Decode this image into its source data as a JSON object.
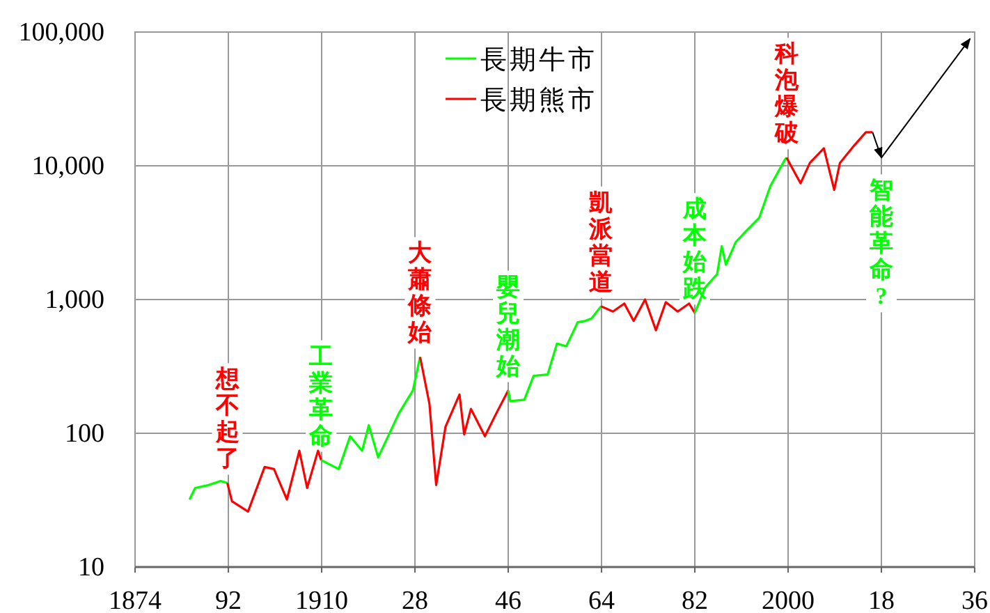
{
  "chart_data": {
    "type": "line",
    "log": true,
    "grid": true,
    "legend": "top",
    "xlim": [
      1874,
      2036
    ],
    "ylim": [
      10,
      100000
    ],
    "xticks": [
      1874,
      {
        "value": 1892,
        "label": "92"
      },
      1910,
      {
        "value": 1928,
        "label": "28"
      },
      {
        "value": 1946,
        "label": "46"
      },
      {
        "value": 1964,
        "label": "64"
      },
      {
        "value": 1982,
        "label": "82"
      },
      2000,
      {
        "value": 2018,
        "label": "18"
      },
      {
        "value": 2036,
        "label": "36"
      }
    ],
    "yticks": [
      10,
      100,
      {
        "value": 1000,
        "label": "1,000"
      },
      {
        "value": 10000,
        "label": "10,000"
      },
      {
        "value": 100000,
        "label": "100,000"
      }
    ],
    "series": [
      {
        "name": "長期牛市",
        "color": "#00ff00",
        "x": [
          1884.5,
          1885.6,
          1888.2,
          1890.5,
          1891.8
        ],
        "values": [
          32,
          39,
          41,
          44,
          42.5
        ]
      },
      {
        "name": "長期熊市",
        "color": "#ff0000",
        "x": [
          1891.8,
          1892.7,
          1895.8,
          1899,
          1900.8,
          1903.3,
          1905.7,
          1907.2,
          1909.3,
          1909.9
        ],
        "values": [
          42.5,
          31,
          26,
          56,
          54,
          32,
          74,
          39,
          74,
          63
        ]
      },
      {
        "color": "#00ff00",
        "x": [
          1909.9,
          1913.3,
          1915.5,
          1917.8,
          1919.1,
          1920.9,
          1923.2,
          1924.9,
          1927.6,
          1929
        ],
        "values": [
          63,
          54,
          95,
          74,
          115,
          66,
          102,
          141,
          209,
          372
        ]
      },
      {
        "color": "#ff0000",
        "x": [
          1929,
          1930.8,
          1932.1,
          1933.9,
          1936.6,
          1937.5,
          1938.8,
          1941.5,
          1943.7,
          1946
        ],
        "values": [
          372,
          166,
          41,
          112,
          195,
          98,
          152,
          95,
          141,
          209
        ]
      },
      {
        "color": "#00ff00",
        "x": [
          1946,
          1946.4,
          1949.1,
          1950.9,
          1953.6,
          1955.4,
          1957.2,
          1959.4,
          1960.8,
          1962.1,
          1963.9
        ],
        "values": [
          209,
          174,
          178,
          269,
          275,
          468,
          447,
          676,
          692,
          724,
          891
        ]
      },
      {
        "color": "#ff0000",
        "x": [
          1963.9,
          1966.2,
          1968.4,
          1970.2,
          1972.4,
          1974.5,
          1976.4,
          1978.7,
          1980.9,
          1982
        ],
        "values": [
          891,
          813,
          933,
          692,
          1000,
          589,
          955,
          813,
          933,
          794
        ]
      },
      {
        "color": "#00ff00",
        "x": [
          1982,
          1984,
          1986.3,
          1987.2,
          1988,
          1989.9,
          1992.1,
          1994.4,
          1996.6,
          1999.3,
          1999.7
        ],
        "values": [
          794,
          1230,
          1550,
          2510,
          1820,
          2690,
          3310,
          4070,
          7080,
          10970,
          11500
        ]
      },
      {
        "color": "#ff0000",
        "x": [
          1999.7,
          2002.4,
          2004.2,
          2006.9,
          2008.9,
          2010,
          2012.7,
          2015,
          2016.3
        ],
        "values": [
          11500,
          7400,
          10500,
          13500,
          6610,
          10500,
          14100,
          17800,
          17800
        ]
      },
      {
        "color": "#000000",
        "x": [
          2018,
          2035.1
        ],
        "values": [
          11500,
          89000
        ]
      },
      {
        "color": "#000000",
        "x": [
          2016.3,
          2018
        ],
        "values": [
          17800,
          11500
        ]
      }
    ],
    "annotations": [
      "想不起了",
      "工業革命",
      "大蕭條始",
      "嬰兒潮始",
      "凱派當道",
      "成本始跌",
      "科泡爆破",
      "智能革命?"
    ]
  }
}
